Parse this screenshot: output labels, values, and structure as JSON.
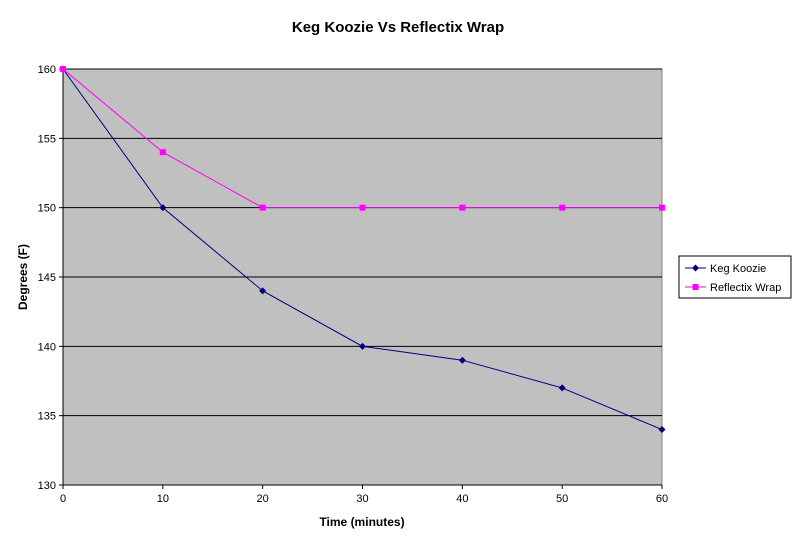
{
  "chart_data": {
    "type": "line",
    "title": "Keg Koozie Vs Reflectix Wrap",
    "xlabel": "Time (minutes)",
    "ylabel": "Degrees (F)",
    "x": [
      0,
      10,
      20,
      30,
      40,
      50,
      60
    ],
    "xlim": [
      0,
      60
    ],
    "ylim": [
      130,
      160
    ],
    "x_ticks": [
      0,
      10,
      20,
      30,
      40,
      50,
      60
    ],
    "y_ticks": [
      130,
      135,
      140,
      145,
      150,
      155,
      160
    ],
    "grid": true,
    "legend_position": "right",
    "plot_background": "#c0c0c0",
    "series": [
      {
        "name": "Keg Koozie",
        "values": [
          160,
          150,
          144,
          140,
          139,
          137,
          134
        ],
        "color": "#000080",
        "marker": "diamond"
      },
      {
        "name": "Reflectix Wrap",
        "values": [
          160,
          154,
          150,
          150,
          150,
          150,
          150
        ],
        "color": "#ff00ff",
        "marker": "square"
      }
    ]
  }
}
